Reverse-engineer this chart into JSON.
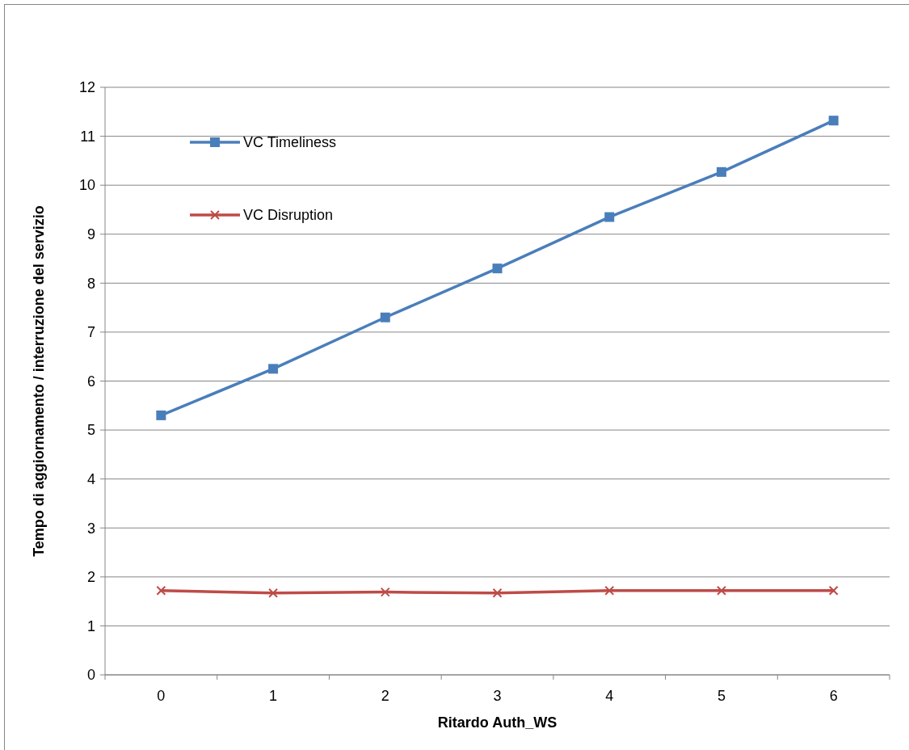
{
  "chart_data": {
    "type": "line",
    "xlabel": "Ritardo Auth_WS",
    "ylabel": "Tempo di aggiornamento / interruzione del servizio",
    "categories": [
      "0",
      "1",
      "2",
      "3",
      "4",
      "5",
      "6"
    ],
    "series": [
      {
        "name": "VC Timeliness",
        "color": "#4a7ebb",
        "marker": "square",
        "values": [
          5.3,
          6.25,
          7.3,
          8.3,
          9.35,
          10.27,
          11.32
        ]
      },
      {
        "name": "VC Disruption",
        "color": "#be4b48",
        "marker": "cross",
        "values": [
          1.72,
          1.67,
          1.69,
          1.67,
          1.72,
          1.72,
          1.72
        ]
      }
    ],
    "ylim": [
      0,
      12
    ],
    "yticks": [
      0,
      1,
      2,
      3,
      4,
      5,
      6,
      7,
      8,
      9,
      10,
      11,
      12
    ],
    "grid": "y",
    "legend": "top left"
  }
}
